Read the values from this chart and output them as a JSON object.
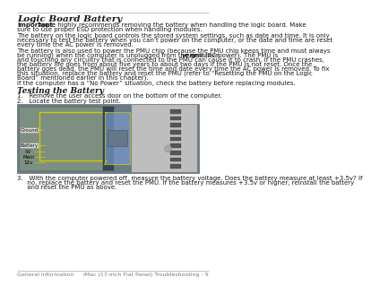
{
  "bg_color": "#ffffff",
  "line_color": "#aaaaaa",
  "title": "Logic Board Battery",
  "important_label": "Important:",
  "important_line1": " Apple highly recommends removing the battery when handling the logic board. Make",
  "important_line2": "sure to use proper ESD protection when handling modules.",
  "para1_lines": [
    "The battery on the logic board controls the stored system settings, such as date and time. It is only",
    "necessary to test the battery when you can’t power on the computer, or the date and time are reset",
    "every time the AC power is removed."
  ],
  "para2_lines": [
    "The battery is also used to power the PMU chip (because the PMU chip keeps time and must always",
    "be running) when the computer is unplugged from the wall (AC power). The PMU is ",
    "very",
    " sensitive",
    "and touching any circuitry that is connected to the PMU can cause it to crash. If the PMU crashes,",
    "the battery life goes from about five years to about two days if the PMU is not reset. Once the",
    "battery goes dead, the PMU will reset the time and date every time the AC power is removed. To fix",
    "this situation, replace the battery and reset the PMU (refer to “Resetting the PMU on the Logic",
    "Board” mentioned earlier in this chapter)."
  ],
  "para3": "If the computer has a “No Power” situation, check the battery before replacing modules.",
  "section2": "Testing the Battery",
  "item1": "1.   Remove the user access door on the bottom of the computer.",
  "item2": "2.   Locate the battery test point.",
  "item3_lines": [
    "3.   With the computer powered off, measure the battery voltage. Does the battery measure at least +3.5v? If",
    "     no, replace the battery and reset the PMU. If the battery measures +3.5v or higher, reinstall the battery",
    "     and reset the PMU as above."
  ],
  "footer_left": "General Information",
  "footer_right": "iMac (17-inch Flat Panel) Troubleshooting - 9",
  "text_color": "#1a1a1a",
  "footer_color": "#777777",
  "fs_body": 5.0,
  "fs_title": 7.5,
  "fs_section": 6.5,
  "lh": 6.5,
  "img_bg": "#8a9aaa",
  "img_board": "#7a8a7a",
  "img_silver": "#c0c0c0",
  "img_slot": "#444444",
  "img_hl": "#cccc00",
  "img_zoom_bg": "#8899bb",
  "img_label_bg": "#cccccc",
  "img_label_fg": "#000000"
}
